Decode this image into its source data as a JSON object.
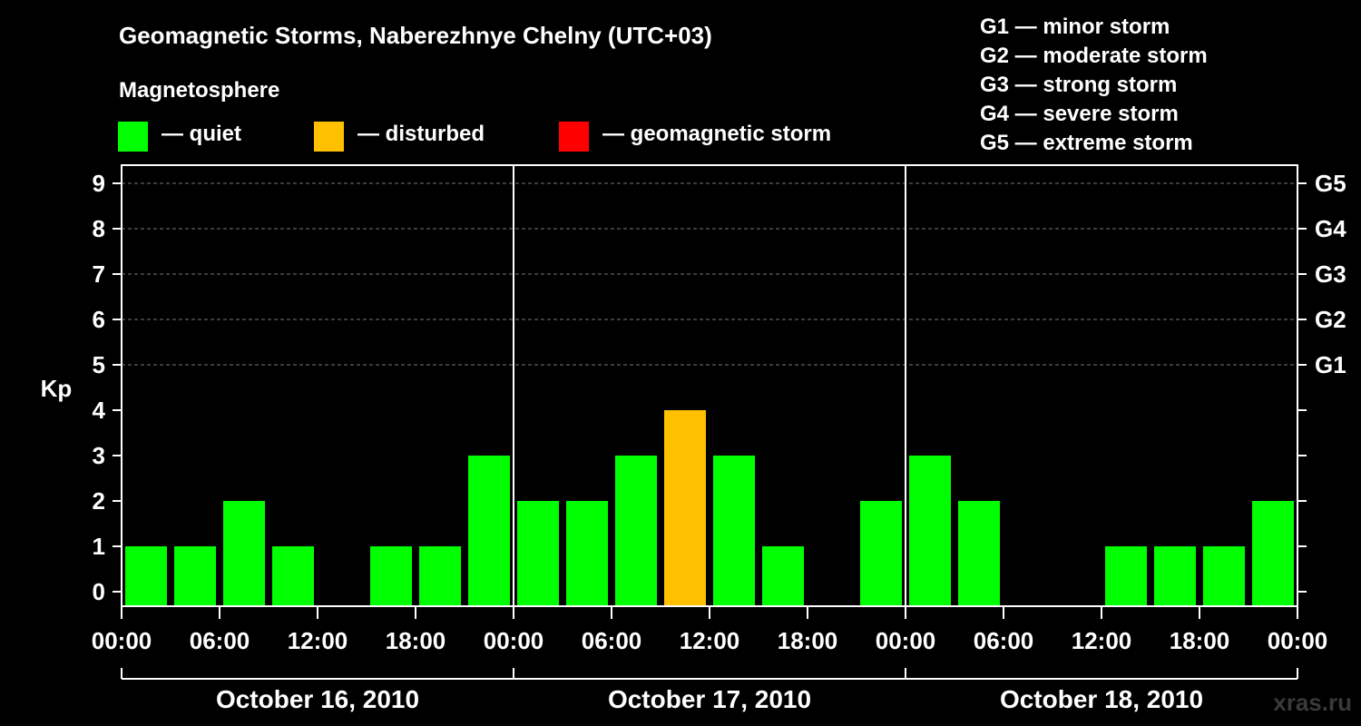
{
  "title": "Geomagnetic Storms, Naberezhnye Chelny (UTC+03)",
  "subtitle": "Magnetosphere",
  "legend": [
    {
      "label": "— quiet",
      "color": "#00ff00"
    },
    {
      "label": "— disturbed",
      "color": "#ffc000"
    },
    {
      "label": "— geomagnetic storm",
      "color": "#ff0000"
    }
  ],
  "storm_scale": [
    "G1 — minor storm",
    "G2 — moderate storm",
    "G3 — strong storm",
    "G4 — severe storm",
    "G5 — extreme storm"
  ],
  "watermark": "xras.ru",
  "chart_data": {
    "type": "bar",
    "title": "Geomagnetic Storms, Naberezhnye Chelny (UTC+03)",
    "ylabel": "Kp",
    "ylim": [
      0,
      9
    ],
    "yticks": [
      "0",
      "1",
      "2",
      "3",
      "4",
      "5",
      "6",
      "7",
      "8",
      "9"
    ],
    "right_ticks": [
      {
        "kp": 5,
        "label": "G1"
      },
      {
        "kp": 6,
        "label": "G2"
      },
      {
        "kp": 7,
        "label": "G3"
      },
      {
        "kp": 8,
        "label": "G4"
      },
      {
        "kp": 9,
        "label": "G5"
      }
    ],
    "xtick_labels": [
      "00:00",
      "06:00",
      "12:00",
      "18:00",
      "00:00",
      "06:00",
      "12:00",
      "18:00",
      "00:00",
      "06:00",
      "12:00",
      "18:00",
      "00:00"
    ],
    "days": [
      "October 16, 2010",
      "October 17, 2010",
      "October 18, 2010"
    ],
    "interval_hours": 3,
    "values": [
      1,
      1,
      2,
      1,
      0,
      1,
      1,
      3,
      2,
      2,
      3,
      4,
      3,
      1,
      0,
      2,
      3,
      2,
      0,
      0,
      1,
      1,
      1,
      2
    ],
    "levels": [
      "quiet",
      "quiet",
      "quiet",
      "quiet",
      "quiet",
      "quiet",
      "quiet",
      "quiet",
      "quiet",
      "quiet",
      "quiet",
      "disturbed",
      "quiet",
      "quiet",
      "quiet",
      "quiet",
      "quiet",
      "quiet",
      "quiet",
      "quiet",
      "quiet",
      "quiet",
      "quiet",
      "quiet"
    ],
    "colors": {
      "quiet": "#00ff00",
      "disturbed": "#ffc000",
      "storm": "#ff0000"
    },
    "grid": true
  }
}
